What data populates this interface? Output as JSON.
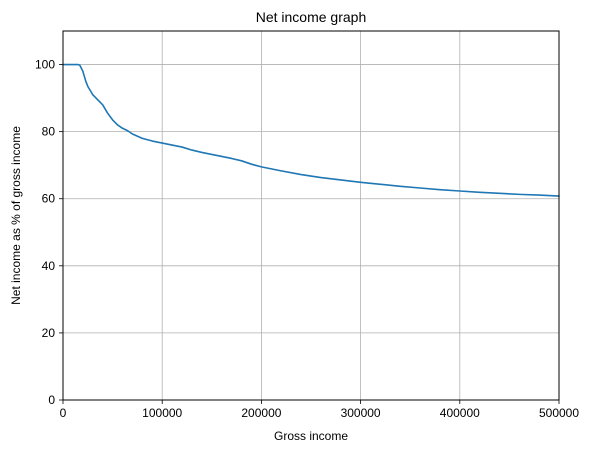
{
  "chart_data": {
    "type": "line",
    "title": "Net income graph",
    "xlabel": "Gross income",
    "ylabel": "Net income as % of gross income",
    "xlim": [
      0,
      500000
    ],
    "ylim": [
      0,
      110
    ],
    "x_ticks": [
      0,
      100000,
      200000,
      300000,
      400000,
      500000
    ],
    "x_tick_labels": [
      "0",
      "100000",
      "200000",
      "300000",
      "400000",
      "500000"
    ],
    "y_ticks": [
      0,
      20,
      40,
      60,
      80,
      100
    ],
    "y_tick_labels": [
      "0",
      "20",
      "40",
      "60",
      "80",
      "100"
    ],
    "grid": true,
    "series": [
      {
        "color": "#1f77b4",
        "x": [
          0,
          5000,
          10000,
          15000,
          17000,
          20000,
          23000,
          25000,
          28000,
          30000,
          35000,
          40000,
          45000,
          50000,
          55000,
          60000,
          65000,
          70000,
          80000,
          90000,
          100000,
          110000,
          120000,
          130000,
          140000,
          150000,
          160000,
          170000,
          180000,
          190000,
          200000,
          220000,
          240000,
          260000,
          280000,
          300000,
          320000,
          340000,
          360000,
          380000,
          400000,
          420000,
          440000,
          460000,
          480000,
          500000
        ],
        "y": [
          100,
          100,
          100,
          100,
          99.8,
          98,
          95,
          93.5,
          92,
          91,
          89.5,
          88,
          85.5,
          83.5,
          82,
          81,
          80.3,
          79.3,
          78,
          77.2,
          76.6,
          76,
          75.4,
          74.5,
          73.8,
          73.2,
          72.6,
          72,
          71.3,
          70.3,
          69.5,
          68.3,
          67.2,
          66.3,
          65.6,
          64.9,
          64.3,
          63.7,
          63.2,
          62.7,
          62.3,
          61.9,
          61.6,
          61.3,
          61.1,
          60.8
        ]
      }
    ]
  }
}
